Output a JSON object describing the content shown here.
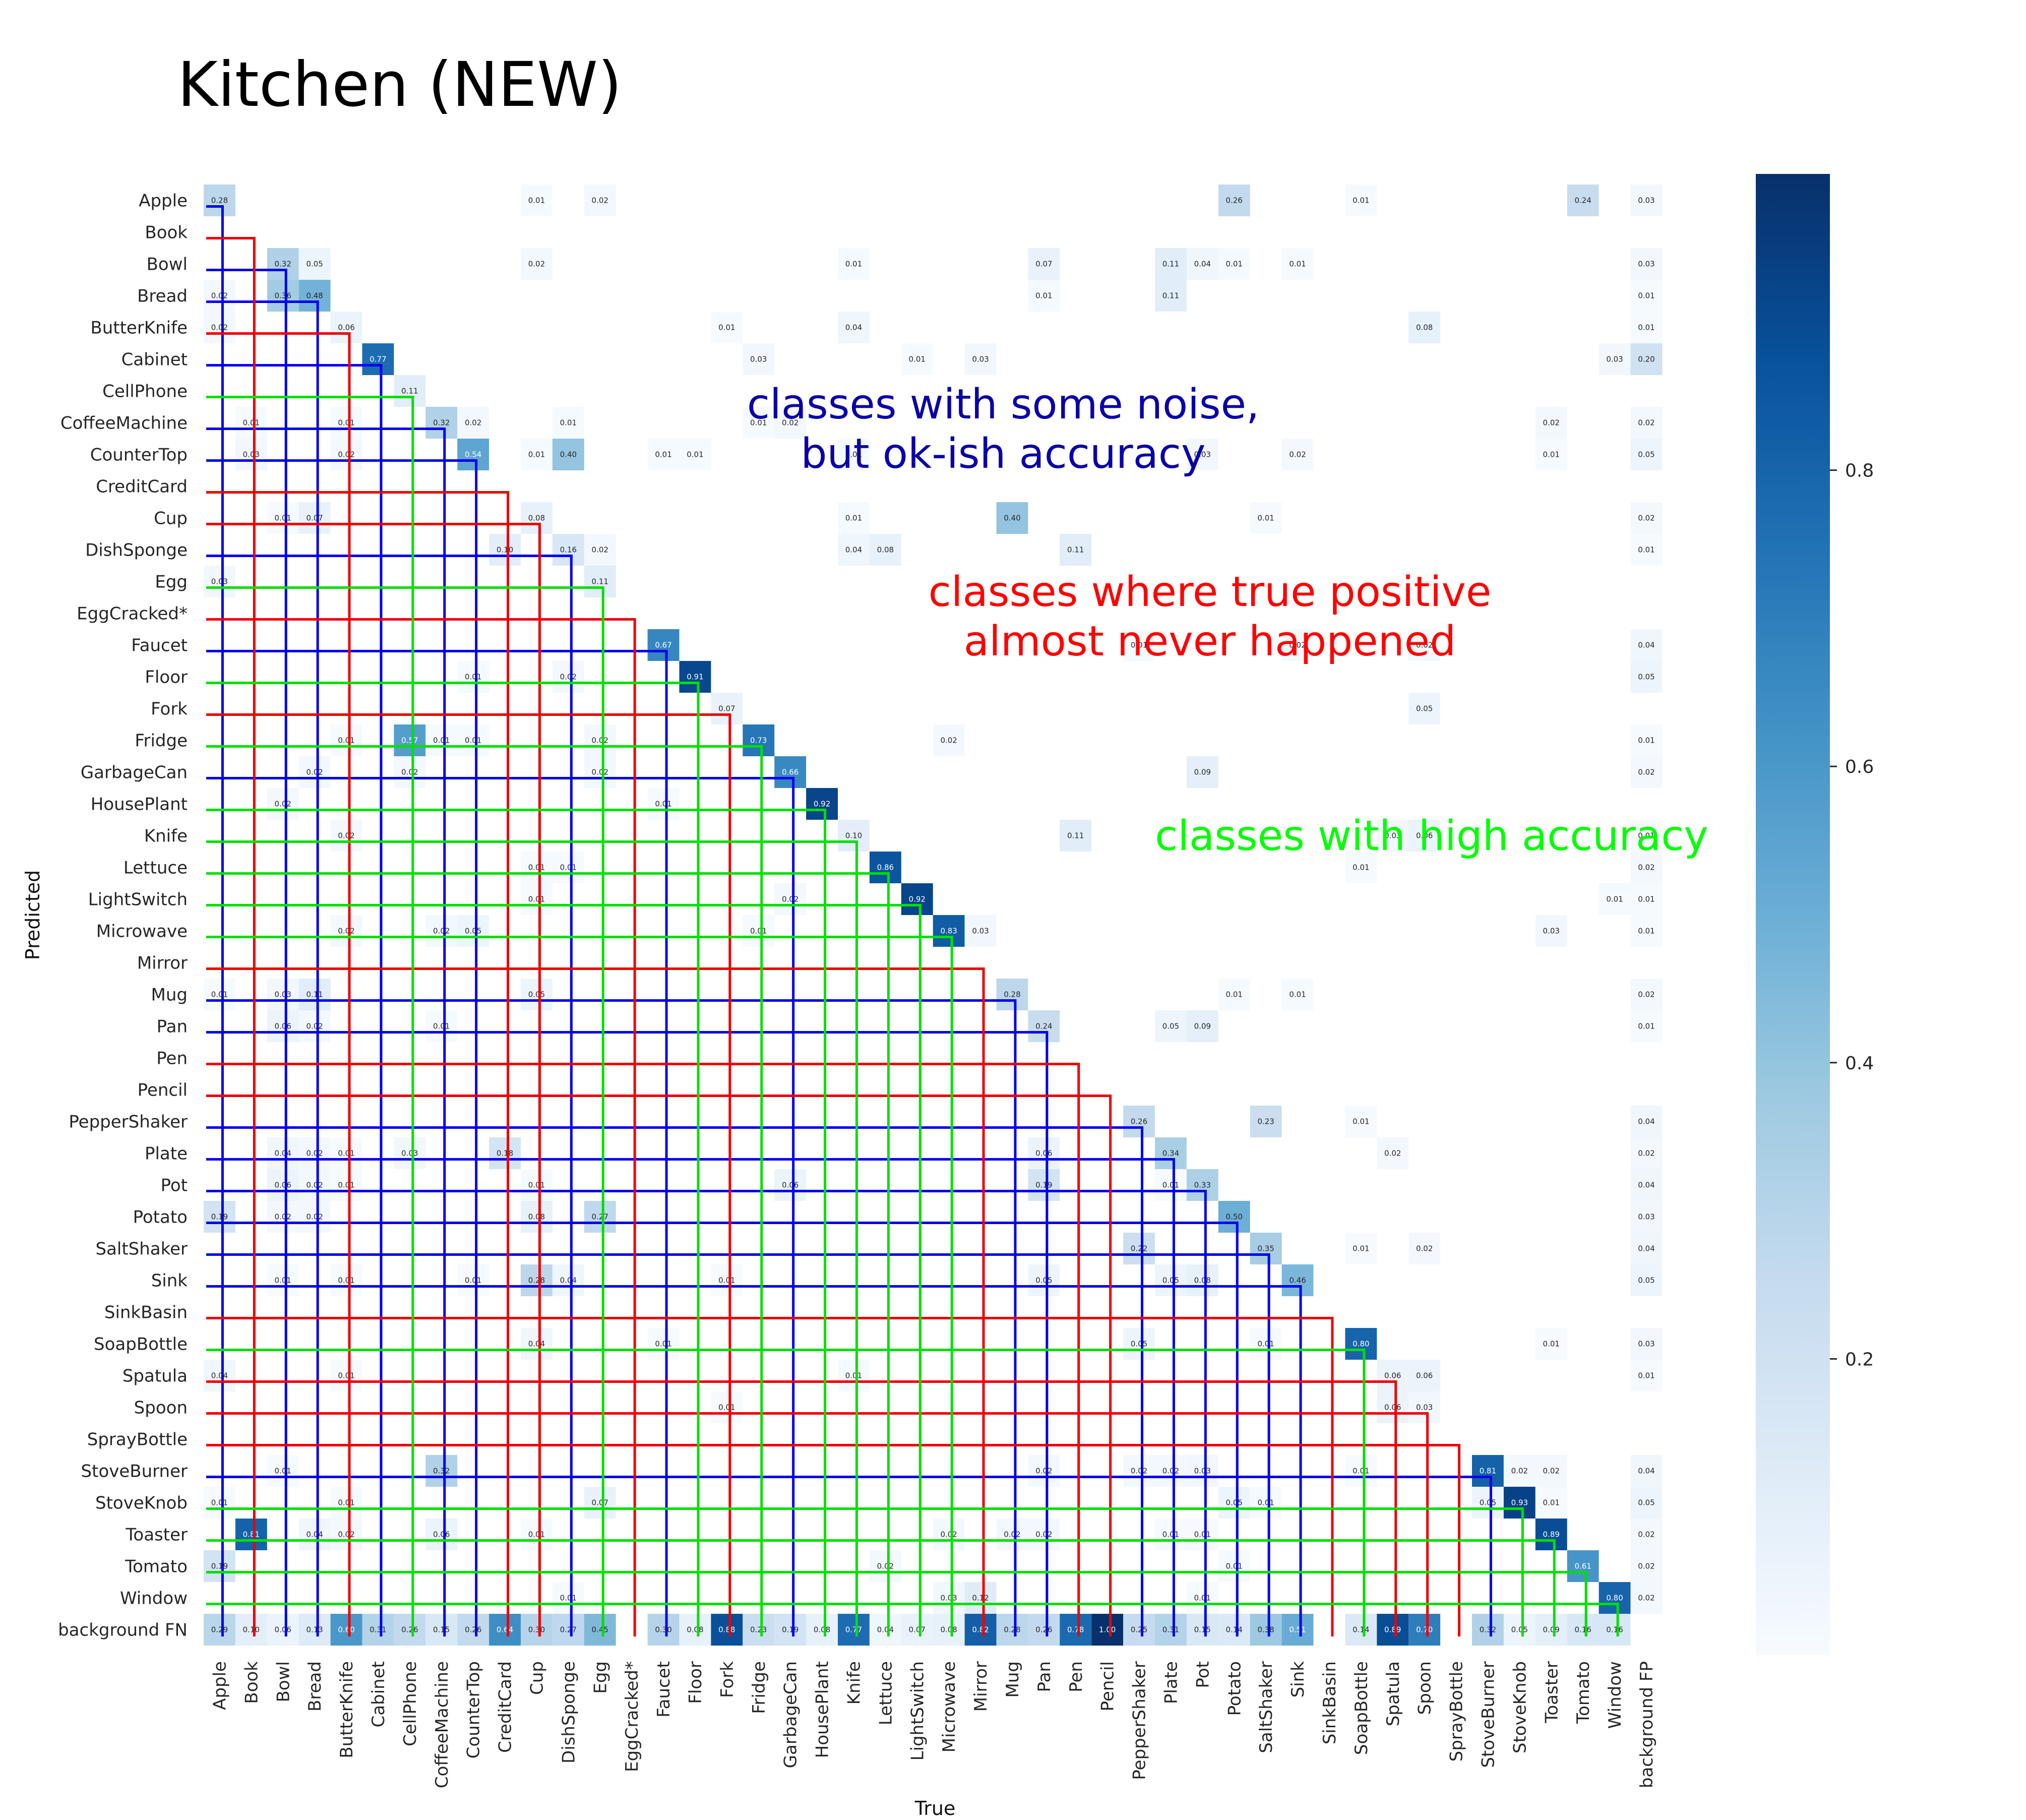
{
  "chart_data": {
    "type": "heatmap",
    "title": "Kitchen (NEW)",
    "xlabel": "True",
    "ylabel": "Predicted",
    "row_labels": [
      "Apple",
      "Book",
      "Bowl",
      "Bread",
      "ButterKnife",
      "Cabinet",
      "CellPhone",
      "CoffeeMachine",
      "CounterTop",
      "CreditCard",
      "Cup",
      "DishSponge",
      "Egg",
      "EggCracked*",
      "Faucet",
      "Floor",
      "Fork",
      "Fridge",
      "GarbageCan",
      "HousePlant",
      "Knife",
      "Lettuce",
      "LightSwitch",
      "Microwave",
      "Mirror",
      "Mug",
      "Pan",
      "Pen",
      "Pencil",
      "PepperShaker",
      "Plate",
      "Pot",
      "Potato",
      "SaltShaker",
      "Sink",
      "SinkBasin",
      "SoapBottle",
      "Spatula",
      "Spoon",
      "SprayBottle",
      "StoveBurner",
      "StoveKnob",
      "Toaster",
      "Tomato",
      "Window",
      "background FN"
    ],
    "col_labels": [
      "Apple",
      "Book",
      "Bowl",
      "Bread",
      "ButterKnife",
      "Cabinet",
      "CellPhone",
      "CoffeeMachine",
      "CounterTop",
      "CreditCard",
      "Cup",
      "DishSponge",
      "Egg",
      "EggCracked*",
      "Faucet",
      "Floor",
      "Fork",
      "Fridge",
      "GarbageCan",
      "HousePlant",
      "Knife",
      "Lettuce",
      "LightSwitch",
      "Microwave",
      "Mirror",
      "Mug",
      "Pan",
      "Pen",
      "Pencil",
      "PepperShaker",
      "Plate",
      "Pot",
      "Potato",
      "SaltShaker",
      "Sink",
      "SinkBasin",
      "SoapBottle",
      "Spatula",
      "Spoon",
      "SprayBottle",
      "StoveBurner",
      "StoveKnob",
      "Toaster",
      "Tomato",
      "Window",
      "background FP"
    ],
    "cells": [
      [
        0,
        0,
        0.28
      ],
      [
        0,
        10,
        0.01
      ],
      [
        0,
        12,
        0.02
      ],
      [
        0,
        32,
        0.26
      ],
      [
        0,
        36,
        0.01
      ],
      [
        0,
        43,
        0.24
      ],
      [
        0,
        45,
        0.03
      ],
      [
        2,
        2,
        0.32
      ],
      [
        2,
        3,
        0.05
      ],
      [
        2,
        10,
        0.02
      ],
      [
        2,
        20,
        0.01
      ],
      [
        2,
        26,
        0.07
      ],
      [
        2,
        30,
        0.11
      ],
      [
        2,
        31,
        0.04
      ],
      [
        2,
        32,
        0.01
      ],
      [
        2,
        34,
        0.01
      ],
      [
        2,
        45,
        0.03
      ],
      [
        3,
        0,
        0.02
      ],
      [
        3,
        2,
        0.36
      ],
      [
        3,
        3,
        0.48
      ],
      [
        3,
        26,
        0.01
      ],
      [
        3,
        30,
        0.11
      ],
      [
        3,
        45,
        0.01
      ],
      [
        4,
        0,
        0.02
      ],
      [
        4,
        4,
        0.06
      ],
      [
        4,
        16,
        0.01
      ],
      [
        4,
        20,
        0.04
      ],
      [
        4,
        38,
        0.08
      ],
      [
        4,
        45,
        0.01
      ],
      [
        5,
        5,
        0.77
      ],
      [
        5,
        17,
        0.03
      ],
      [
        5,
        22,
        0.01
      ],
      [
        5,
        24,
        0.03
      ],
      [
        5,
        44,
        0.03
      ],
      [
        5,
        45,
        0.2
      ],
      [
        6,
        6,
        0.11
      ],
      [
        7,
        1,
        0.01
      ],
      [
        7,
        4,
        0.01
      ],
      [
        7,
        7,
        0.32
      ],
      [
        7,
        8,
        0.02
      ],
      [
        7,
        11,
        0.01
      ],
      [
        7,
        17,
        0.01
      ],
      [
        7,
        18,
        0.02
      ],
      [
        7,
        42,
        0.02
      ],
      [
        7,
        45,
        0.02
      ],
      [
        8,
        1,
        0.03
      ],
      [
        8,
        4,
        0.02
      ],
      [
        8,
        8,
        0.54
      ],
      [
        8,
        10,
        0.01
      ],
      [
        8,
        11,
        0.4
      ],
      [
        8,
        14,
        0.01
      ],
      [
        8,
        15,
        0.01
      ],
      [
        8,
        20,
        0.01
      ],
      [
        8,
        31,
        0.03
      ],
      [
        8,
        34,
        0.02
      ],
      [
        8,
        42,
        0.01
      ],
      [
        8,
        45,
        0.05
      ],
      [
        10,
        2,
        0.01
      ],
      [
        10,
        3,
        0.07
      ],
      [
        10,
        10,
        0.08
      ],
      [
        10,
        20,
        0.01
      ],
      [
        10,
        25,
        0.4
      ],
      [
        10,
        33,
        0.01
      ],
      [
        10,
        45,
        0.02
      ],
      [
        11,
        9,
        0.1
      ],
      [
        11,
        11,
        0.16
      ],
      [
        11,
        12,
        0.02
      ],
      [
        11,
        20,
        0.04
      ],
      [
        11,
        21,
        0.08
      ],
      [
        11,
        27,
        0.11
      ],
      [
        11,
        45,
        0.01
      ],
      [
        12,
        0,
        0.03
      ],
      [
        12,
        12,
        0.11
      ],
      [
        14,
        14,
        0.67
      ],
      [
        14,
        29,
        0.01
      ],
      [
        14,
        34,
        0.02
      ],
      [
        14,
        38,
        0.02
      ],
      [
        14,
        45,
        0.04
      ],
      [
        15,
        8,
        0.01
      ],
      [
        15,
        11,
        0.02
      ],
      [
        15,
        15,
        0.91
      ],
      [
        15,
        45,
        0.05
      ],
      [
        16,
        16,
        0.07
      ],
      [
        16,
        38,
        0.05
      ],
      [
        17,
        4,
        0.01
      ],
      [
        17,
        6,
        0.57
      ],
      [
        17,
        7,
        0.01
      ],
      [
        17,
        8,
        0.01
      ],
      [
        17,
        12,
        0.02
      ],
      [
        17,
        17,
        0.73
      ],
      [
        17,
        23,
        0.02
      ],
      [
        17,
        45,
        0.01
      ],
      [
        18,
        3,
        0.02
      ],
      [
        18,
        6,
        0.02
      ],
      [
        18,
        12,
        0.02
      ],
      [
        18,
        18,
        0.66
      ],
      [
        18,
        31,
        0.09
      ],
      [
        18,
        45,
        0.02
      ],
      [
        19,
        2,
        0.02
      ],
      [
        19,
        14,
        0.01
      ],
      [
        19,
        19,
        0.92
      ],
      [
        20,
        4,
        0.02
      ],
      [
        20,
        20,
        0.1
      ],
      [
        20,
        27,
        0.11
      ],
      [
        20,
        37,
        0.03
      ],
      [
        20,
        38,
        0.06
      ],
      [
        20,
        45,
        0.01
      ],
      [
        21,
        10,
        0.01
      ],
      [
        21,
        11,
        0.01
      ],
      [
        21,
        21,
        0.86
      ],
      [
        21,
        36,
        0.01
      ],
      [
        21,
        45,
        0.02
      ],
      [
        22,
        10,
        0.01
      ],
      [
        22,
        18,
        0.02
      ],
      [
        22,
        22,
        0.92
      ],
      [
        22,
        44,
        0.01
      ],
      [
        22,
        45,
        0.01
      ],
      [
        23,
        4,
        0.02
      ],
      [
        23,
        7,
        0.02
      ],
      [
        23,
        8,
        0.05
      ],
      [
        23,
        17,
        0.01
      ],
      [
        23,
        23,
        0.83
      ],
      [
        23,
        24,
        0.03
      ],
      [
        23,
        42,
        0.03
      ],
      [
        23,
        45,
        0.01
      ],
      [
        25,
        0,
        0.01
      ],
      [
        25,
        2,
        0.03
      ],
      [
        25,
        3,
        0.11
      ],
      [
        25,
        10,
        0.05
      ],
      [
        25,
        25,
        0.28
      ],
      [
        25,
        32,
        0.01
      ],
      [
        25,
        34,
        0.01
      ],
      [
        25,
        45,
        0.02
      ],
      [
        26,
        2,
        0.06
      ],
      [
        26,
        3,
        0.02
      ],
      [
        26,
        7,
        0.01
      ],
      [
        26,
        26,
        0.24
      ],
      [
        26,
        30,
        0.05
      ],
      [
        26,
        31,
        0.09
      ],
      [
        26,
        45,
        0.01
      ],
      [
        29,
        29,
        0.26
      ],
      [
        29,
        33,
        0.23
      ],
      [
        29,
        36,
        0.01
      ],
      [
        29,
        45,
        0.04
      ],
      [
        30,
        2,
        0.04
      ],
      [
        30,
        3,
        0.02
      ],
      [
        30,
        4,
        0.01
      ],
      [
        30,
        6,
        0.03
      ],
      [
        30,
        9,
        0.18
      ],
      [
        30,
        26,
        0.06
      ],
      [
        30,
        30,
        0.34
      ],
      [
        30,
        37,
        0.02
      ],
      [
        30,
        45,
        0.02
      ],
      [
        31,
        2,
        0.06
      ],
      [
        31,
        3,
        0.02
      ],
      [
        31,
        4,
        0.01
      ],
      [
        31,
        10,
        0.01
      ],
      [
        31,
        18,
        0.06
      ],
      [
        31,
        26,
        0.19
      ],
      [
        31,
        30,
        0.01
      ],
      [
        31,
        31,
        0.33
      ],
      [
        31,
        45,
        0.04
      ],
      [
        32,
        0,
        0.19
      ],
      [
        32,
        2,
        0.02
      ],
      [
        32,
        3,
        0.02
      ],
      [
        32,
        10,
        0.08
      ],
      [
        32,
        12,
        0.27
      ],
      [
        32,
        32,
        0.5
      ],
      [
        32,
        45,
        0.03
      ],
      [
        33,
        29,
        0.22
      ],
      [
        33,
        33,
        0.35
      ],
      [
        33,
        36,
        0.01
      ],
      [
        33,
        38,
        0.02
      ],
      [
        33,
        45,
        0.04
      ],
      [
        34,
        2,
        0.01
      ],
      [
        34,
        4,
        0.01
      ],
      [
        34,
        8,
        0.01
      ],
      [
        34,
        10,
        0.28
      ],
      [
        34,
        11,
        0.04
      ],
      [
        34,
        16,
        0.01
      ],
      [
        34,
        26,
        0.05
      ],
      [
        34,
        30,
        0.05
      ],
      [
        34,
        31,
        0.08
      ],
      [
        34,
        34,
        0.46
      ],
      [
        34,
        45,
        0.05
      ],
      [
        36,
        10,
        0.04
      ],
      [
        36,
        14,
        0.01
      ],
      [
        36,
        29,
        0.05
      ],
      [
        36,
        33,
        0.01
      ],
      [
        36,
        36,
        0.8
      ],
      [
        36,
        42,
        0.01
      ],
      [
        36,
        45,
        0.03
      ],
      [
        37,
        0,
        0.04
      ],
      [
        37,
        4,
        0.01
      ],
      [
        37,
        20,
        0.01
      ],
      [
        37,
        37,
        0.06
      ],
      [
        37,
        38,
        0.06
      ],
      [
        37,
        45,
        0.01
      ],
      [
        38,
        16,
        0.01
      ],
      [
        38,
        37,
        0.06
      ],
      [
        38,
        38,
        0.03
      ],
      [
        40,
        2,
        0.01
      ],
      [
        40,
        7,
        0.32
      ],
      [
        40,
        26,
        0.02
      ],
      [
        40,
        29,
        0.02
      ],
      [
        40,
        30,
        0.02
      ],
      [
        40,
        31,
        0.03
      ],
      [
        40,
        36,
        0.01
      ],
      [
        40,
        40,
        0.81
      ],
      [
        40,
        41,
        0.02
      ],
      [
        40,
        42,
        0.02
      ],
      [
        40,
        45,
        0.04
      ],
      [
        41,
        0,
        0.01
      ],
      [
        41,
        4,
        0.01
      ],
      [
        41,
        12,
        0.07
      ],
      [
        41,
        32,
        0.05
      ],
      [
        41,
        33,
        0.01
      ],
      [
        41,
        40,
        0.05
      ],
      [
        41,
        41,
        0.93
      ],
      [
        41,
        42,
        0.01
      ],
      [
        41,
        45,
        0.05
      ],
      [
        42,
        1,
        0.81
      ],
      [
        42,
        3,
        0.04
      ],
      [
        42,
        4,
        0.02
      ],
      [
        42,
        7,
        0.06
      ],
      [
        42,
        10,
        0.01
      ],
      [
        42,
        23,
        0.02
      ],
      [
        42,
        25,
        0.02
      ],
      [
        42,
        26,
        0.02
      ],
      [
        42,
        30,
        0.01
      ],
      [
        42,
        31,
        0.01
      ],
      [
        42,
        42,
        0.89
      ],
      [
        42,
        45,
        0.02
      ],
      [
        43,
        0,
        0.19
      ],
      [
        43,
        21,
        0.02
      ],
      [
        43,
        32,
        0.01
      ],
      [
        43,
        43,
        0.61
      ],
      [
        43,
        45,
        0.02
      ],
      [
        44,
        11,
        0.01
      ],
      [
        44,
        23,
        0.03
      ],
      [
        44,
        24,
        0.12
      ],
      [
        44,
        31,
        0.01
      ],
      [
        44,
        44,
        0.8
      ],
      [
        44,
        45,
        0.02
      ],
      [
        45,
        0,
        0.29
      ],
      [
        45,
        1,
        0.1
      ],
      [
        45,
        2,
        0.06
      ],
      [
        45,
        3,
        0.13
      ],
      [
        45,
        4,
        0.6
      ],
      [
        45,
        5,
        0.31
      ],
      [
        45,
        6,
        0.26
      ],
      [
        45,
        7,
        0.15
      ],
      [
        45,
        8,
        0.26
      ],
      [
        45,
        9,
        0.64
      ],
      [
        45,
        10,
        0.3
      ],
      [
        45,
        11,
        0.27
      ],
      [
        45,
        12,
        0.45
      ],
      [
        45,
        14,
        0.3
      ],
      [
        45,
        15,
        0.08
      ],
      [
        45,
        16,
        0.88
      ],
      [
        45,
        17,
        0.23
      ],
      [
        45,
        18,
        0.19
      ],
      [
        45,
        19,
        0.08
      ],
      [
        45,
        20,
        0.77
      ],
      [
        45,
        21,
        0.04
      ],
      [
        45,
        22,
        0.07
      ],
      [
        45,
        23,
        0.08
      ],
      [
        45,
        24,
        0.82
      ],
      [
        45,
        25,
        0.28
      ],
      [
        45,
        26,
        0.26
      ],
      [
        45,
        27,
        0.78
      ],
      [
        45,
        28,
        1.0
      ],
      [
        45,
        29,
        0.25
      ],
      [
        45,
        30,
        0.31
      ],
      [
        45,
        31,
        0.15
      ],
      [
        45,
        32,
        0.14
      ],
      [
        45,
        33,
        0.38
      ],
      [
        45,
        34,
        0.51
      ],
      [
        45,
        36,
        0.14
      ],
      [
        45,
        37,
        0.89
      ],
      [
        45,
        38,
        0.7
      ],
      [
        45,
        40,
        0.32
      ],
      [
        45,
        41,
        0.05
      ],
      [
        45,
        42,
        0.09
      ],
      [
        45,
        43,
        0.16
      ],
      [
        45,
        44,
        0.16
      ]
    ],
    "colorbar": {
      "colormap": "Blues",
      "range": [
        0,
        1.0
      ],
      "ticks": [
        "0.2",
        "0.4",
        "0.6",
        "0.8"
      ]
    },
    "annotation_groups": [
      {
        "text": [
          "classes with some noise,",
          "but ok-ish accuracy"
        ],
        "color": "#0a00a8",
        "line_color": "#0000ee",
        "classes": [
          0,
          2,
          3,
          5,
          7,
          8,
          11,
          14,
          18,
          25,
          26,
          29,
          30,
          31,
          32,
          33,
          34,
          40
        ]
      },
      {
        "text": [
          "classes where true positive",
          "almost never happened"
        ],
        "color": "#ff0000",
        "line_color": "#ee0000",
        "classes": [
          1,
          4,
          9,
          10,
          13,
          16,
          24,
          27,
          28,
          35,
          37,
          38,
          39
        ]
      },
      {
        "text": [
          "classes with high accuracy"
        ],
        "color": "#00ff00",
        "line_color": "#00e000",
        "classes": [
          6,
          12,
          15,
          17,
          19,
          20,
          21,
          22,
          23,
          36,
          41,
          42,
          43,
          44
        ]
      }
    ]
  }
}
